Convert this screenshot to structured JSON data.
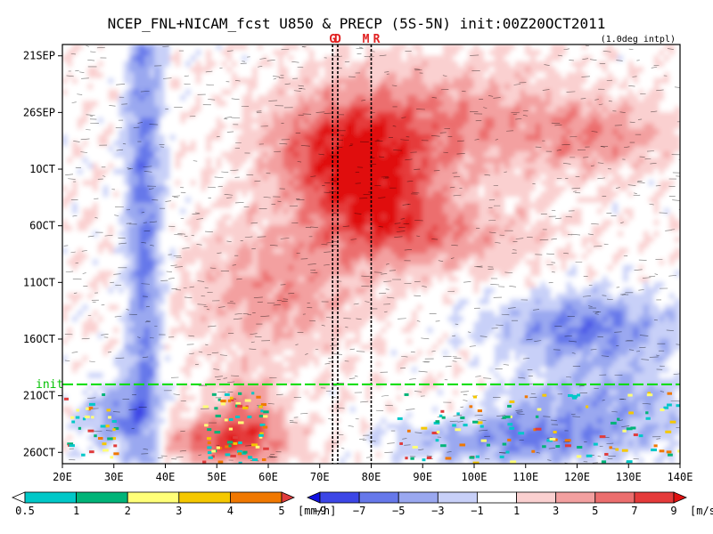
{
  "chart_data": {
    "type": "heatmap",
    "title": "NCEP_FNL+NICAM_fcst U850 & PRECP (5S-5N) init:00Z20OCT2011",
    "note": "(1.0deg intpl)",
    "x_axis": {
      "range_deg_east": [
        20,
        140
      ],
      "ticks": [
        {
          "value": 20,
          "label": "20E"
        },
        {
          "value": 30,
          "label": "30E"
        },
        {
          "value": 40,
          "label": "40E"
        },
        {
          "value": 50,
          "label": "50E"
        },
        {
          "value": 60,
          "label": "60E"
        },
        {
          "value": 70,
          "label": "70E"
        },
        {
          "value": 80,
          "label": "80E"
        },
        {
          "value": 90,
          "label": "90E"
        },
        {
          "value": 100,
          "label": "100E"
        },
        {
          "value": 110,
          "label": "110E"
        },
        {
          "value": 120,
          "label": "120E"
        },
        {
          "value": 130,
          "label": "130E"
        },
        {
          "value": 140,
          "label": "140E"
        }
      ]
    },
    "y_axis": {
      "range_dates": [
        "2011-09-20",
        "2011-10-27"
      ],
      "inverted": true,
      "ticks": [
        {
          "value": "2011-09-21",
          "label": "21SEP"
        },
        {
          "value": "2011-09-26",
          "label": "26SEP"
        },
        {
          "value": "2011-10-01",
          "label": "1OCT"
        },
        {
          "value": "2011-10-06",
          "label": "6OCT"
        },
        {
          "value": "2011-10-11",
          "label": "11OCT"
        },
        {
          "value": "2011-10-16",
          "label": "16OCT"
        },
        {
          "value": "2011-10-21",
          "label": "21OCT"
        },
        {
          "value": "2011-10-26",
          "label": "26OCT"
        }
      ]
    },
    "markers": [
      {
        "label": "G",
        "longitude": 72.5
      },
      {
        "label": "D",
        "longitude": 73.5
      },
      {
        "label": "M",
        "longitude": 80
      },
      {
        "label": "R",
        "longitude": 80
      }
    ],
    "init_line": {
      "label": "init",
      "date": "2011-10-20",
      "color": "#00dd00"
    },
    "series": [
      {
        "name": "U850",
        "units": "[m/s]",
        "colorbar_levels": [
          -9,
          -7,
          -5,
          -3,
          -1,
          1,
          3,
          5,
          7,
          9
        ],
        "colorbar_colors": [
          "#1010e0",
          "#3c46e6",
          "#6678ea",
          "#9aa8f0",
          "#c8d0f8",
          "#ffffff",
          "#fad0d0",
          "#f3a0a0",
          "#ec6e6e",
          "#e53a3a",
          "#e01010"
        ]
      },
      {
        "name": "PRECP",
        "units": "[mm/h]",
        "colorbar_levels": [
          0.5,
          1,
          2,
          3,
          4,
          5
        ],
        "colorbar_colors": [
          "#ffffff",
          "#00c8c8",
          "#00b478",
          "#ffff78",
          "#f5c800",
          "#f07800",
          "#e03c3c"
        ]
      }
    ],
    "grid": false,
    "legend": "bottom"
  }
}
